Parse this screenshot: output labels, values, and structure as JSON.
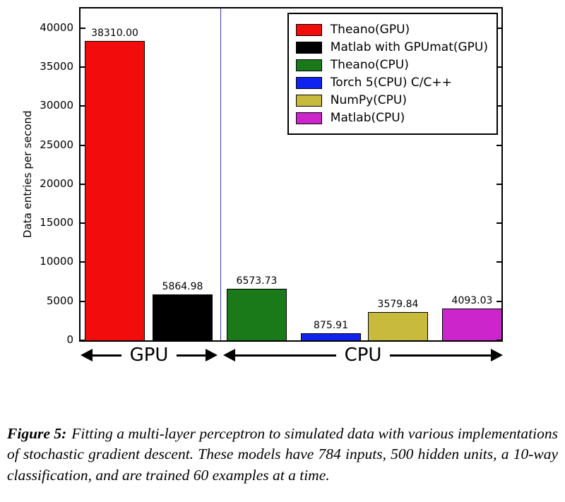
{
  "chart_data": {
    "type": "bar",
    "title": "",
    "xlabel": "",
    "ylabel": "Data entries per second",
    "ylim": [
      0,
      42500
    ],
    "yticks": [
      0,
      5000,
      10000,
      15000,
      20000,
      25000,
      30000,
      35000,
      40000
    ],
    "grid": false,
    "categories": [
      "Theano(GPU)",
      "Matlab with GPUmat(GPU)",
      "Theano(CPU)",
      "Torch 5(CPU) C/C++",
      "NumPy(CPU)",
      "Matlab(CPU)"
    ],
    "values": [
      38310.0,
      5864.98,
      6573.73,
      875.91,
      3579.84,
      4093.03
    ],
    "value_labels": [
      "38310.00",
      "5864.98",
      "6573.73",
      "875.91",
      "3579.84",
      "4093.03"
    ],
    "colors": [
      "#f20c0c",
      "#000000",
      "#1a7a1a",
      "#1022ee",
      "#c8ba3d",
      "#cc25cc"
    ],
    "legend_position": "upper right",
    "divider_color": "#3a3ab4",
    "groups": [
      {
        "label": "GPU",
        "bars": [
          0,
          1
        ]
      },
      {
        "label": "CPU",
        "bars": [
          2,
          3,
          4,
          5
        ]
      }
    ]
  },
  "caption": {
    "label": "Figure 5:",
    "text": "Fitting a multi-layer perceptron to simulated data with various implementations of stochastic gradient descent. These models have 784 inputs, 500 hidden units, a 10-way classification, and are trained 60 examples at a time."
  }
}
